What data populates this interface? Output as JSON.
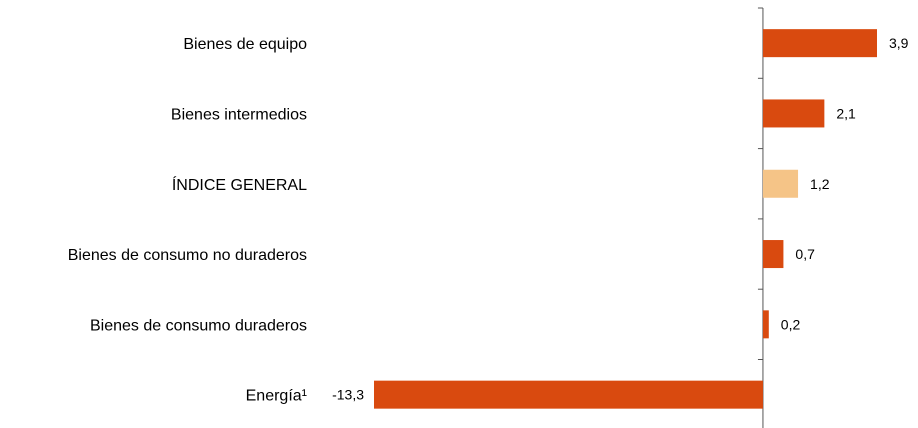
{
  "chart_data": {
    "type": "bar",
    "orientation": "horizontal",
    "categories": [
      "Bienes de equipo",
      "Bienes intermedios",
      "ÍNDICE GENERAL",
      "Bienes de consumo no duraderos",
      "Bienes de consumo duraderos",
      "Energía¹"
    ],
    "values": [
      3.9,
      2.1,
      1.2,
      0.7,
      0.2,
      -13.3
    ],
    "value_labels": [
      "3,9",
      "2,1",
      "1,2",
      "0,7",
      "0,2",
      "-13,3"
    ],
    "highlight_index": 2,
    "xlim": [
      -13.3,
      3.9
    ],
    "grid": false,
    "legend": "none",
    "colors": {
      "bar": "#d94a0f",
      "highlight": "#f5c487",
      "axis": "#555555",
      "text": "#000000"
    }
  }
}
